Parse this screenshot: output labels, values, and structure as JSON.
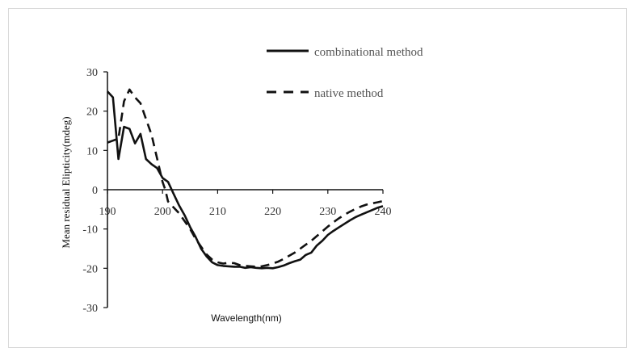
{
  "chart_data": {
    "type": "line",
    "title": "",
    "xlabel": "Wavelength(nm)",
    "ylabel": "Mean residual Elipticity(mdeg)",
    "xlim": [
      190,
      240
    ],
    "ylim": [
      -30,
      30
    ],
    "xticks": [
      190,
      200,
      210,
      220,
      230,
      240
    ],
    "yticks": [
      30,
      20,
      10,
      0,
      -10,
      -20,
      -30
    ],
    "xtick_labels": [
      "190",
      "200",
      "210",
      "220",
      "230",
      "240"
    ],
    "ytick_labels": [
      "30",
      "20",
      "10",
      "0",
      "-10",
      "-20",
      "-30"
    ],
    "grid": false,
    "legend_position": "top-right",
    "series": [
      {
        "name": "combinational method",
        "style": "solid",
        "color": "#111111",
        "x": [
          190,
          191,
          192,
          193,
          194,
          195,
          196,
          197,
          198,
          199,
          200,
          201,
          202,
          203,
          204,
          205,
          206,
          207,
          208,
          209,
          210,
          211,
          212,
          213,
          214,
          215,
          216,
          217,
          218,
          219,
          220,
          221,
          222,
          223,
          224,
          225,
          226,
          227,
          228,
          229,
          230,
          231,
          232,
          233,
          234,
          235,
          236,
          237,
          238,
          239,
          240
        ],
        "y": [
          25,
          23.5,
          7.8,
          16,
          15.5,
          11.8,
          14.2,
          7.8,
          6.5,
          5.5,
          3,
          2,
          -1,
          -4,
          -6.5,
          -9.5,
          -12,
          -15,
          -17,
          -18.5,
          -19.2,
          -19.4,
          -19.5,
          -19.6,
          -19.6,
          -19.9,
          -19.7,
          -19.9,
          -20,
          -19.9,
          -20,
          -19.7,
          -19.3,
          -18.7,
          -18.2,
          -17.8,
          -16.6,
          -16,
          -14.2,
          -13,
          -11.5,
          -10.5,
          -9.6,
          -8.7,
          -7.8,
          -7,
          -6.4,
          -5.8,
          -5.2,
          -4.6,
          -4.2
        ]
      },
      {
        "name": "native method",
        "style": "dashed",
        "color": "#111111",
        "x": [
          190,
          191,
          192,
          193,
          194,
          195,
          196,
          197,
          198,
          199,
          200,
          200.5,
          201,
          202,
          203,
          204,
          205,
          206,
          207,
          208,
          209,
          210,
          211,
          212,
          213,
          214,
          215,
          216,
          217,
          218,
          219,
          220,
          221,
          222,
          223,
          224,
          225,
          226,
          227,
          228,
          229,
          230,
          231,
          232,
          233,
          234,
          235,
          236,
          237,
          238,
          239,
          240
        ],
        "y": [
          12,
          12.5,
          13,
          22.5,
          25.5,
          23.5,
          22,
          18,
          14,
          8,
          2,
          0,
          -3,
          -4.5,
          -6,
          -8,
          -10,
          -12.5,
          -14.5,
          -16.5,
          -17.8,
          -18.5,
          -18.8,
          -18.6,
          -18.7,
          -19.2,
          -19.4,
          -19.5,
          -19.6,
          -19.5,
          -19.2,
          -18.8,
          -18.3,
          -17.6,
          -16.8,
          -16,
          -15,
          -14,
          -13,
          -11.8,
          -10.6,
          -9.4,
          -8.3,
          -7.3,
          -6.4,
          -5.6,
          -4.9,
          -4.3,
          -3.8,
          -3.5,
          -3.2,
          -2.9
        ]
      }
    ]
  }
}
